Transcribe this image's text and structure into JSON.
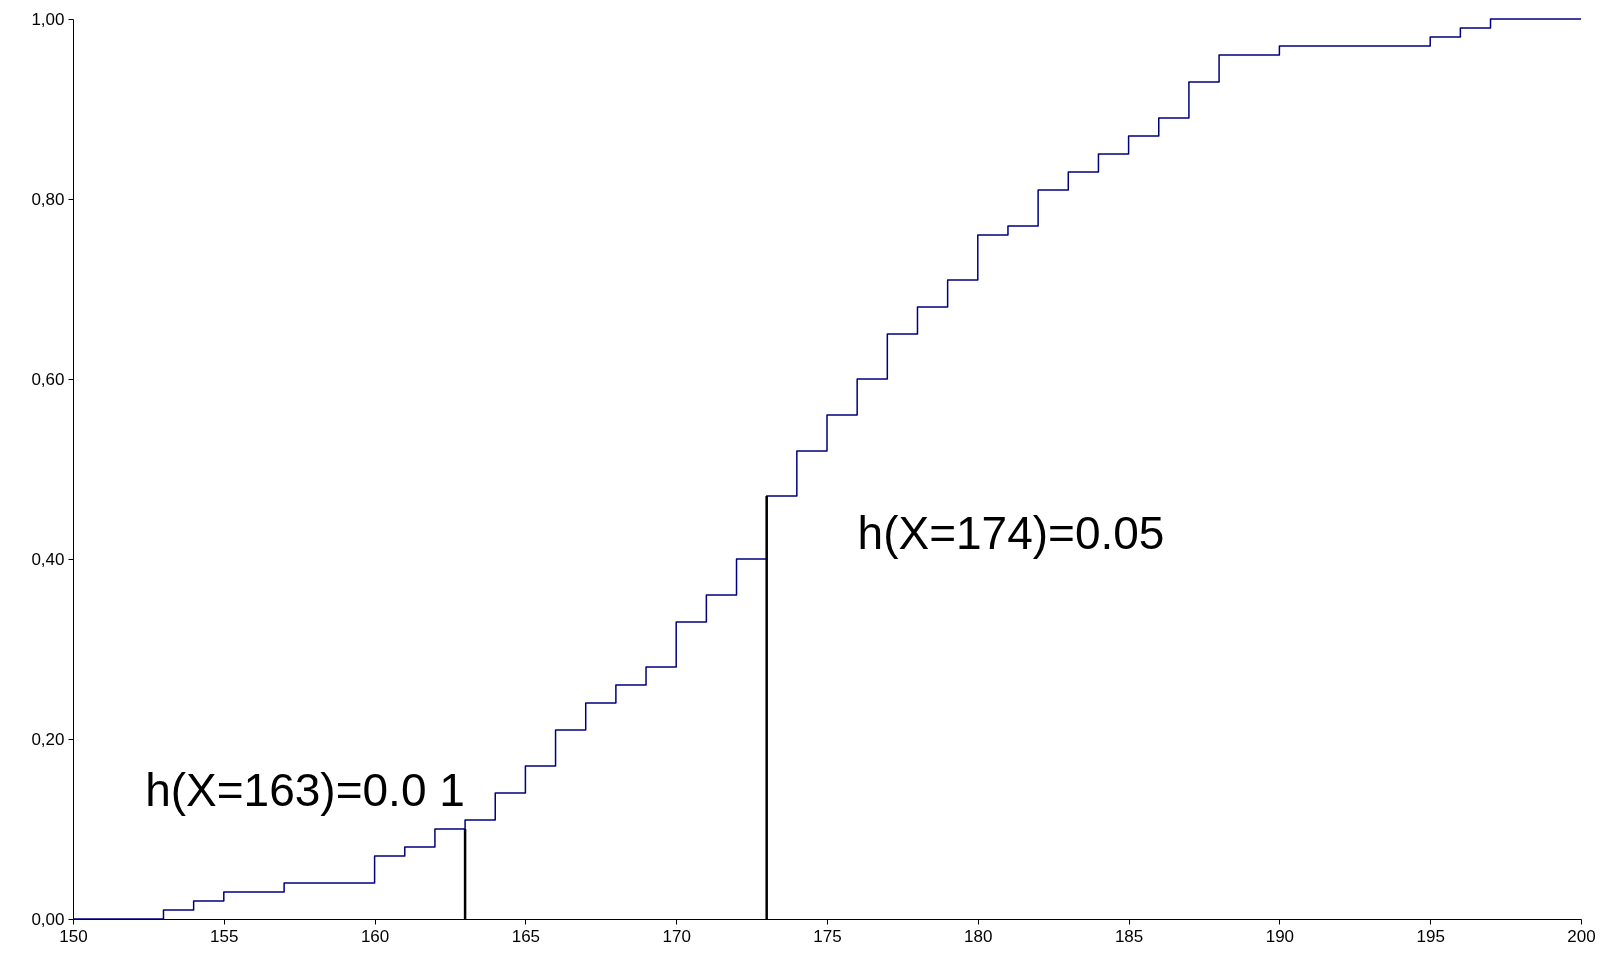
{
  "chart_data": {
    "type": "step",
    "xlim": [
      150,
      200
    ],
    "xticks": [
      150,
      155,
      160,
      165,
      170,
      175,
      180,
      185,
      190,
      195,
      200
    ],
    "ylim": [
      0,
      1
    ],
    "yticks": [
      {
        "value": 0,
        "label": "0,00"
      },
      {
        "value": 0.2,
        "label": "0,20"
      },
      {
        "value": 0.4,
        "label": "0,40"
      },
      {
        "value": 0.6,
        "label": "0,60"
      },
      {
        "value": 0.8,
        "label": "0,80"
      },
      {
        "value": 1,
        "label": "1,00"
      }
    ],
    "grid": false,
    "series": [
      {
        "color": "#000080",
        "x": [
          150,
          151,
          152,
          153,
          154,
          155,
          156,
          157,
          158,
          159,
          160,
          161,
          162,
          163,
          164,
          165,
          166,
          167,
          168,
          169,
          170,
          171,
          172,
          173,
          174,
          175,
          176,
          177,
          178,
          179,
          180,
          181,
          182,
          183,
          184,
          185,
          186,
          187,
          188,
          189,
          190,
          191,
          192,
          193,
          194,
          195,
          196,
          197,
          198,
          199,
          200
        ],
        "values": [
          0,
          0,
          0,
          0.01,
          0.02,
          0.03,
          0.03,
          0.04,
          0.04,
          0.04,
          0.07,
          0.08,
          0.1,
          0.11,
          0.14,
          0.17,
          0.21,
          0.24,
          0.26,
          0.28,
          0.33,
          0.36,
          0.4,
          0.47,
          0.52,
          0.56,
          0.6,
          0.65,
          0.68,
          0.71,
          0.76,
          0.77,
          0.81,
          0.83,
          0.85,
          0.87,
          0.89,
          0.93,
          0.96,
          0.96,
          0.97,
          0.97,
          0.97,
          0.97,
          0.97,
          0.98,
          0.99,
          1,
          1,
          1,
          1
        ]
      },
      {
        "type": "line",
        "color": "#000000",
        "x": [
          163,
          163
        ],
        "values": [
          0,
          0.1
        ]
      },
      {
        "type": "line",
        "color": "#000000",
        "x": [
          173,
          173
        ],
        "values": [
          0,
          0.47
        ]
      }
    ],
    "annotations": [
      "h(X=163)=0.0 1",
      "h(X=174)=0.05"
    ]
  }
}
